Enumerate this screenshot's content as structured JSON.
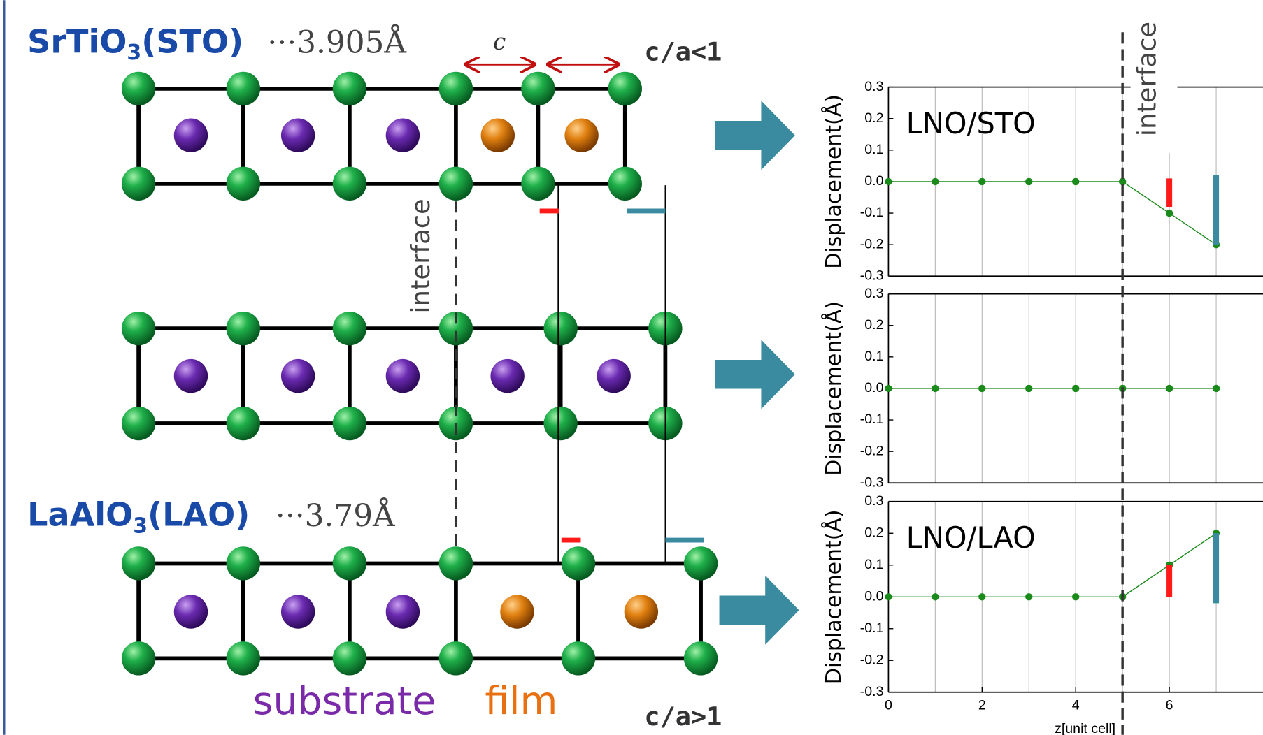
{
  "diagram": {
    "sto": {
      "prefix": "SrTiO",
      "sub": "3",
      "suffix": "(STO)",
      "param": "···3.905Å"
    },
    "lao": {
      "prefix": "LaAlO",
      "sub": "3",
      "suffix": "(LAO)",
      "param": "···3.79Å"
    },
    "c_label": "c",
    "top_ratio": "c/a<1",
    "bottom_ratio": "c/a>1",
    "interface_left": "interface",
    "substrate": "substrate",
    "film": "film"
  },
  "interface_line": {
    "label": "interface",
    "x": 5
  },
  "chart_data": [
    {
      "type": "line",
      "title": "LNO/STO",
      "ylabel": "Displacement(Å)",
      "x": [
        0,
        1,
        2,
        3,
        4,
        5,
        6,
        7
      ],
      "series": [
        {
          "color": "#1a8a1a",
          "values": [
            0,
            0,
            0,
            0,
            0,
            0,
            -0.1,
            -0.2
          ]
        }
      ],
      "bars": [
        {
          "x": 6,
          "from": 0.01,
          "to": -0.08,
          "color": "#ff1a1a"
        },
        {
          "x": 7,
          "from": 0.02,
          "to": -0.2,
          "color": "#3a8aa0"
        }
      ],
      "xlim": [
        0,
        8
      ],
      "ylim": [
        -0.3,
        0.3
      ],
      "xgrid": [
        1,
        2,
        3,
        4,
        5,
        6,
        7
      ],
      "yticks": [
        -0.3,
        -0.2,
        -0.1,
        {
          "value": 0,
          "label": "0.0"
        },
        0.1,
        0.2,
        0.3
      ]
    },
    {
      "type": "line",
      "ylabel": "Displacement(Å)",
      "x": [
        0,
        1,
        2,
        3,
        4,
        5,
        6,
        7
      ],
      "series": [
        {
          "color": "#1a8a1a",
          "values": [
            0,
            0,
            0,
            0,
            0,
            0,
            0,
            0
          ]
        }
      ],
      "xlim": [
        0,
        8
      ],
      "ylim": [
        -0.3,
        0.3
      ],
      "xgrid": [
        1,
        2,
        3,
        4,
        5,
        6,
        7
      ],
      "yticks": [
        -0.3,
        -0.2,
        -0.1,
        {
          "value": 0,
          "label": "0.0"
        },
        0.1,
        0.2,
        0.3
      ]
    },
    {
      "type": "line",
      "title": "LNO/LAO",
      "ylabel": "Displacement(Å)",
      "xlabel": "z[unit cell]",
      "x": [
        0,
        1,
        2,
        3,
        4,
        5,
        6,
        7
      ],
      "series": [
        {
          "color": "#1a8a1a",
          "values": [
            0,
            0,
            0,
            0,
            0,
            0,
            0.1,
            0.2
          ]
        }
      ],
      "bars": [
        {
          "x": 6,
          "from": 0.1,
          "to": 0,
          "color": "#ff1a1a"
        },
        {
          "x": 7,
          "from": 0.2,
          "to": -0.02,
          "color": "#3a8aa0"
        }
      ],
      "xlim": [
        0,
        8
      ],
      "ylim": [
        -0.3,
        0.3
      ],
      "xgrid": [
        1,
        2,
        3,
        4,
        5,
        6,
        7
      ],
      "xticks": [
        0,
        2,
        4,
        6
      ],
      "yticks": [
        -0.3,
        -0.2,
        -0.1,
        {
          "value": 0,
          "label": "0.0"
        },
        0.1,
        0.2,
        0.3
      ]
    }
  ]
}
